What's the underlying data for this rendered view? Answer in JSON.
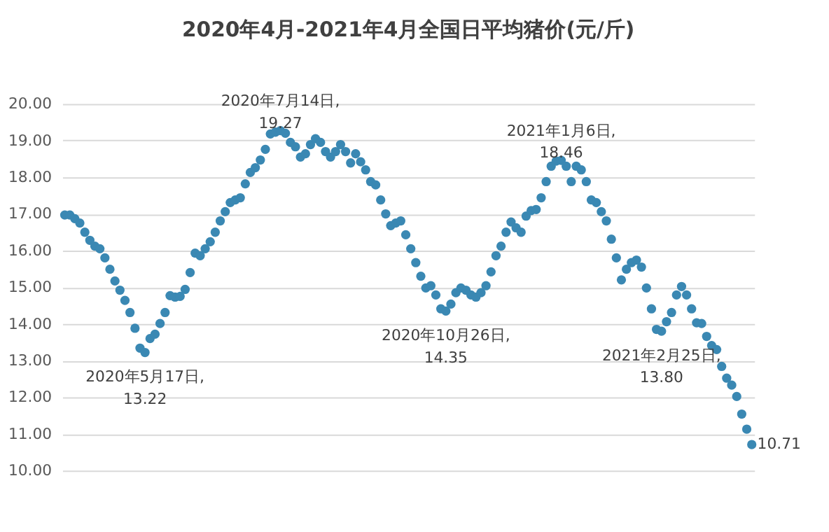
{
  "chart_data": {
    "type": "scatter",
    "title": "2020年4月-2021年4月全国日平均猪价(元/斤)",
    "categories": [
      null,
      null,
      null,
      null,
      null,
      null,
      null,
      null,
      null,
      null,
      null,
      null,
      null,
      null,
      null,
      null,
      null,
      null,
      null,
      null,
      null,
      null,
      null,
      null,
      null,
      null,
      null,
      null,
      null,
      null,
      null,
      null,
      null,
      null,
      null,
      null,
      null,
      null,
      null,
      null,
      null,
      null,
      null,
      null,
      null,
      null,
      null,
      null,
      null,
      null,
      null,
      null,
      null,
      null,
      null,
      null,
      null,
      null,
      null,
      null,
      null,
      null,
      null,
      null,
      null,
      null,
      null,
      null,
      null,
      null,
      null,
      null,
      null,
      null,
      null,
      null,
      null,
      null,
      null,
      null,
      null,
      null,
      null,
      null,
      null,
      null,
      null,
      null,
      null,
      null,
      null,
      null,
      null,
      null,
      null,
      null,
      null,
      null,
      null,
      null,
      null,
      null,
      null,
      null,
      null,
      null,
      null,
      null,
      null,
      null,
      null,
      null,
      null,
      null,
      null,
      null,
      null,
      null,
      null,
      null,
      null,
      null,
      null,
      null,
      null,
      null,
      null,
      null,
      null,
      null,
      null,
      null,
      null,
      null,
      null,
      null,
      null,
      null
    ],
    "series": [
      {
        "color": "#3a88b3",
        "values": [
          16.97,
          16.97,
          16.87,
          16.75,
          16.5,
          16.28,
          16.12,
          16.05,
          15.8,
          15.49,
          15.17,
          14.92,
          14.64,
          14.31,
          13.88,
          13.34,
          13.22,
          13.6,
          13.72,
          14.01,
          14.31,
          14.77,
          14.73,
          14.75,
          14.94,
          15.4,
          15.93,
          15.86,
          16.05,
          16.24,
          16.5,
          16.81,
          17.06,
          17.31,
          17.38,
          17.44,
          17.82,
          18.13,
          18.26,
          18.47,
          18.76,
          19.18,
          19.23,
          19.27,
          19.2,
          18.95,
          18.83,
          18.55,
          18.64,
          18.89,
          19.05,
          18.95,
          18.7,
          18.55,
          18.7,
          18.89,
          18.7,
          18.39,
          18.64,
          18.42,
          18.2,
          17.88,
          17.79,
          17.38,
          17.0,
          16.68,
          16.75,
          16.81,
          16.43,
          16.05,
          15.67,
          15.3,
          14.98,
          15.04,
          14.79,
          14.41,
          14.35,
          14.54,
          14.85,
          14.98,
          14.92,
          14.79,
          14.73,
          14.85,
          15.04,
          15.42,
          15.86,
          16.12,
          16.5,
          16.78,
          16.62,
          16.5,
          16.94,
          17.09,
          17.12,
          17.44,
          17.88,
          18.3,
          18.44,
          18.46,
          18.3,
          17.88,
          18.3,
          18.2,
          17.88,
          17.38,
          17.31,
          17.06,
          16.81,
          16.31,
          15.8,
          15.2,
          15.49,
          15.67,
          15.74,
          15.55,
          14.98,
          14.41,
          13.85,
          13.8,
          14.06,
          14.31,
          14.79,
          15.02,
          14.79,
          14.41,
          14.03,
          14.01,
          13.66,
          13.41,
          13.3,
          12.84,
          12.52,
          12.33,
          12.02,
          11.54,
          11.13,
          10.71
        ]
      }
    ],
    "ylim": [
      10,
      20
    ],
    "yticks": [
      {
        "value": 10,
        "label": "10.00"
      },
      {
        "value": 11,
        "label": "11.00"
      },
      {
        "value": 12,
        "label": "12.00"
      },
      {
        "value": 13,
        "label": "13.00"
      },
      {
        "value": 14,
        "label": "14.00"
      },
      {
        "value": 15,
        "label": "15.00"
      },
      {
        "value": 16,
        "label": "16.00"
      },
      {
        "value": 17,
        "label": "17.00"
      },
      {
        "value": 18,
        "label": "18.00"
      },
      {
        "value": 19,
        "label": "19.00"
      },
      {
        "value": 20,
        "label": "20.00"
      }
    ],
    "grid": "y",
    "marker": "circle",
    "legend": false,
    "annotations": [
      {
        "text": "2020年5月17日,\n13.22",
        "y": 13.22
      },
      {
        "text": "2020年7月14日,\n19.27",
        "y": 19.27
      },
      {
        "text": "2020年10月26日,\n14.35",
        "y": 14.35
      },
      {
        "text": "2021年1月6日,\n18.46",
        "y": 18.46
      },
      {
        "text": "2021年2月25日,\n13.80",
        "y": 13.8
      },
      "10.71"
    ]
  }
}
